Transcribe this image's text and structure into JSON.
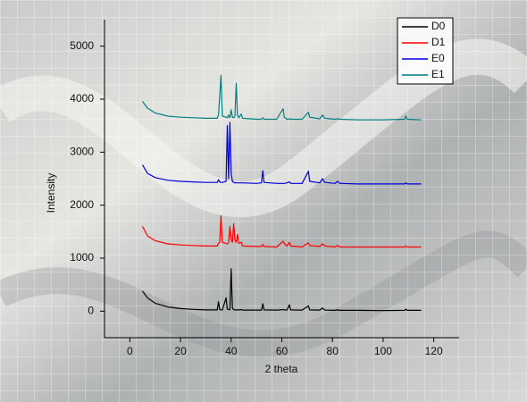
{
  "chart_data": {
    "type": "line",
    "x_label": "2 theta",
    "y_label": "Intensity",
    "xlim": [
      -10,
      130
    ],
    "ylim": [
      -500,
      5500
    ],
    "xticks": [
      0,
      20,
      40,
      60,
      80,
      100,
      120
    ],
    "yticks": [
      0,
      1000,
      2000,
      3000,
      4000,
      5000
    ],
    "legend": "upper right",
    "x": [
      5,
      7,
      10,
      15,
      20,
      25,
      30,
      34.5,
      35,
      35.5,
      36,
      36.5,
      38,
      38.5,
      39,
      39.5,
      40,
      40.5,
      41,
      41.5,
      42,
      42.5,
      43,
      44,
      44.5,
      50,
      52,
      52.5,
      53,
      58,
      60.5,
      61,
      62,
      63,
      63.5,
      68,
      70.5,
      71,
      75,
      76,
      77,
      81,
      82,
      83,
      90,
      100,
      108.5,
      109,
      109.5,
      115
    ],
    "series": [
      {
        "name": "D0",
        "color": "#000000",
        "values": [
          380,
          250,
          150,
          80,
          50,
          35,
          25,
          25,
          180,
          30,
          25,
          25,
          250,
          40,
          30,
          30,
          800,
          60,
          30,
          25,
          25,
          25,
          25,
          30,
          20,
          20,
          20,
          140,
          25,
          20,
          30,
          25,
          20,
          120,
          25,
          20,
          100,
          25,
          20,
          60,
          20,
          15,
          25,
          15,
          15,
          10,
          15,
          40,
          15,
          15
        ]
      },
      {
        "name": "D1",
        "color": "#ff0000",
        "values": [
          1600,
          1420,
          1330,
          1270,
          1250,
          1240,
          1230,
          1230,
          1280,
          1300,
          1800,
          1300,
          1280,
          1270,
          1300,
          1600,
          1350,
          1300,
          1650,
          1350,
          1300,
          1450,
          1280,
          1300,
          1230,
          1220,
          1220,
          1260,
          1220,
          1210,
          1320,
          1280,
          1230,
          1300,
          1230,
          1210,
          1290,
          1240,
          1220,
          1270,
          1230,
          1210,
          1240,
          1210,
          1210,
          1210,
          1210,
          1230,
          1210,
          1210
        ]
      },
      {
        "name": "E0",
        "color": "#0000dd",
        "values": [
          2760,
          2600,
          2520,
          2470,
          2450,
          2440,
          2430,
          2430,
          2480,
          2440,
          2430,
          2430,
          2450,
          3500,
          2500,
          3560,
          2600,
          2450,
          2430,
          2420,
          2420,
          2420,
          2420,
          2420,
          2420,
          2410,
          2420,
          2650,
          2430,
          2410,
          2410,
          2410,
          2420,
          2440,
          2410,
          2410,
          2640,
          2450,
          2420,
          2500,
          2430,
          2410,
          2450,
          2410,
          2400,
          2400,
          2400,
          2420,
          2400,
          2400
        ]
      },
      {
        "name": "E1",
        "color": "#008080",
        "values": [
          3960,
          3830,
          3740,
          3680,
          3660,
          3650,
          3640,
          3640,
          3700,
          4050,
          4450,
          3680,
          3660,
          3650,
          3700,
          3650,
          3800,
          3660,
          3650,
          3680,
          4300,
          3700,
          3650,
          3720,
          3640,
          3620,
          3620,
          3650,
          3620,
          3620,
          3820,
          3660,
          3620,
          3630,
          3620,
          3620,
          3750,
          3660,
          3630,
          3700,
          3640,
          3620,
          3630,
          3620,
          3610,
          3610,
          3620,
          3680,
          3620,
          3610
        ]
      }
    ]
  }
}
